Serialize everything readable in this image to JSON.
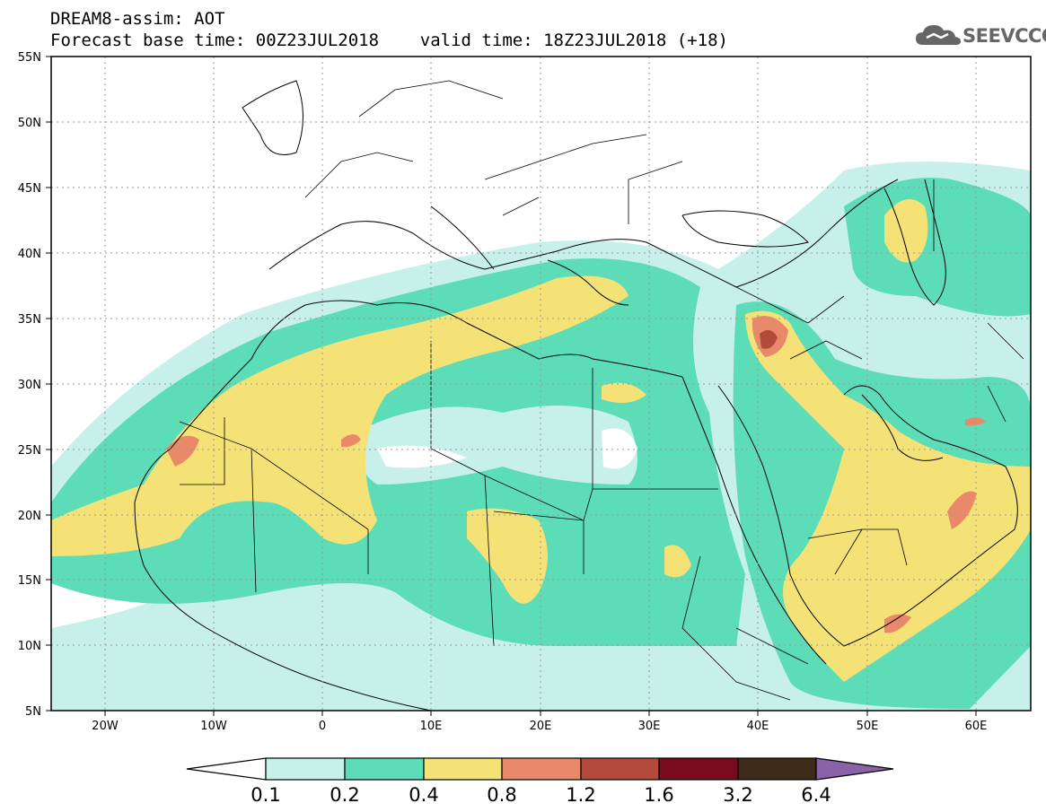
{
  "header": {
    "line1": "DREAM8-assim: AOT",
    "line2": "Forecast base time: 00Z23JUL2018    valid time: 18Z23JUL2018 (+18)"
  },
  "logo": {
    "text": "SEEVCCC",
    "icon": "cloud-icon"
  },
  "map": {
    "lat_ticks": [
      "55N",
      "50N",
      "45N",
      "40N",
      "35N",
      "30N",
      "25N",
      "20N",
      "15N",
      "10N",
      "5N"
    ],
    "lon_ticks": [
      "20W",
      "10W",
      "0",
      "10E",
      "20E",
      "30E",
      "40E",
      "50E",
      "60E"
    ],
    "lat_range": [
      5,
      55
    ],
    "lon_range": [
      -25,
      65
    ],
    "grid": "dotted"
  },
  "colorbar": {
    "labels": [
      "0.1",
      "0.2",
      "0.4",
      "0.8",
      "1.2",
      "1.6",
      "3.2",
      "6.4"
    ],
    "colors": [
      "#ffffff",
      "#c8f0ea",
      "#5ddcb8",
      "#f5e276",
      "#e9896a",
      "#b24a3c",
      "#7a0a20",
      "#3e2a18",
      "#8a62a8"
    ]
  }
}
